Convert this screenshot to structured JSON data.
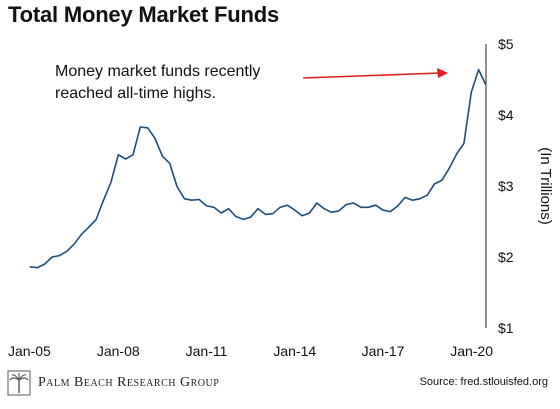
{
  "title": "Total Money Market Funds",
  "annotation": "Money market funds recently reached all-time highs.",
  "footer": {
    "brand": "Palm Beach Research Group",
    "source": "Source: fred.stlouisfed.org"
  },
  "colors": {
    "line": "#1f4e79",
    "arrow": "#e02020",
    "grid": "#d9d9d9"
  },
  "chart_data": {
    "type": "line",
    "title": "Total Money Market Funds",
    "ylabel": "(In Trillions)",
    "xlabel": "",
    "x_ticks": [
      "Jan-05",
      "Jan-08",
      "Jan-11",
      "Jan-14",
      "Jan-17",
      "Jan-20"
    ],
    "y_ticks": [
      "$1",
      "$2",
      "$3",
      "$4",
      "$5"
    ],
    "ylim": [
      1,
      5
    ],
    "xlim": [
      2005.0,
      2020.5
    ],
    "grid": false,
    "series": [
      {
        "x": [
          2005.0,
          2005.25,
          2005.5,
          2005.75,
          2006.0,
          2006.25,
          2006.5,
          2006.75,
          2007.0,
          2007.25,
          2007.5,
          2007.75,
          2008.0,
          2008.25,
          2008.5,
          2008.75,
          2009.0,
          2009.25,
          2009.5,
          2009.75,
          2010.0,
          2010.25,
          2010.5,
          2010.75,
          2011.0,
          2011.25,
          2011.5,
          2011.75,
          2012.0,
          2012.25,
          2012.5,
          2012.75,
          2013.0,
          2013.25,
          2013.5,
          2013.75,
          2014.0,
          2014.25,
          2014.5,
          2014.75,
          2015.0,
          2015.25,
          2015.5,
          2015.75,
          2016.0,
          2016.25,
          2016.5,
          2016.75,
          2017.0,
          2017.25,
          2017.5,
          2017.75,
          2018.0,
          2018.25,
          2018.5,
          2018.75,
          2019.0,
          2019.25,
          2019.5,
          2019.75,
          2020.0,
          2020.25,
          2020.5
        ],
        "y": [
          1.86,
          1.85,
          1.9,
          2.0,
          2.02,
          2.08,
          2.18,
          2.32,
          2.42,
          2.53,
          2.8,
          3.05,
          3.44,
          3.38,
          3.44,
          3.83,
          3.82,
          3.67,
          3.42,
          3.32,
          2.99,
          2.82,
          2.8,
          2.81,
          2.72,
          2.7,
          2.62,
          2.68,
          2.57,
          2.53,
          2.56,
          2.68,
          2.6,
          2.61,
          2.7,
          2.73,
          2.66,
          2.58,
          2.62,
          2.76,
          2.68,
          2.63,
          2.65,
          2.74,
          2.76,
          2.7,
          2.7,
          2.73,
          2.66,
          2.64,
          2.72,
          2.84,
          2.8,
          2.82,
          2.87,
          3.03,
          3.08,
          3.25,
          3.45,
          3.6,
          4.32,
          4.64,
          4.42
        ]
      }
    ]
  }
}
